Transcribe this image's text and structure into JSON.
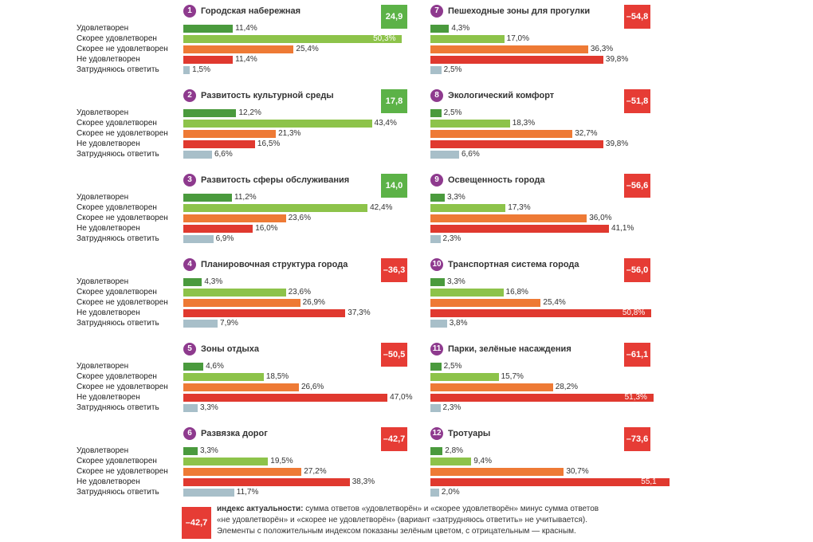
{
  "colors": {
    "satisfied": "#4a9a3d",
    "rather_satisfied": "#8dc34a",
    "rather_not_satisfied": "#ee7a35",
    "not_satisfied": "#e0392f",
    "hard_to_say": "#a8bfc9",
    "index_positive": "#5cb247",
    "index_negative": "#e63c35",
    "number_circle": "#8e3a8e"
  },
  "legend": {
    "index_value": "–42,7",
    "bold_part": "индекс актуальности:",
    "text_line1": " сумма ответов «удовлетворён» и «скорее удовлетворён» минус сумма ответов",
    "text_line2": "«не удовлетворён» и «скорее не удовлетворён» (вариант «затрудняюсь ответить» не учитывается).",
    "text_line3": "Элементы с положительным индексом показаны зелёным цветом, с отрицательным — красным."
  },
  "chart_data": [
    {
      "type": "bar",
      "number": "1",
      "title": "Городская набережная",
      "index": "24,9",
      "categories": [
        "Удовлетворен",
        "Скорее удовлетворен",
        "Скорее не удовлетворен",
        "Не удовлетворен",
        "Затрудняюсь ответить"
      ],
      "values": [
        11.4,
        50.3,
        25.4,
        11.4,
        1.5
      ],
      "labels": [
        "11,4%",
        "50,3%",
        "25,4%",
        "11,4%",
        "1,5%"
      ]
    },
    {
      "type": "bar",
      "number": "2",
      "title": "Развитость культурной среды",
      "index": "17,8",
      "categories": [
        "Удовлетворен",
        "Скорее удовлетворен",
        "Скорее не удовлетворен",
        "Не удовлетворен",
        "Затрудняюсь ответить"
      ],
      "values": [
        12.2,
        43.4,
        21.3,
        16.5,
        6.6
      ],
      "labels": [
        "12,2%",
        "43,4%",
        "21,3%",
        "16,5%",
        "6,6%"
      ]
    },
    {
      "type": "bar",
      "number": "3",
      "title": "Развитость сферы обслуживания",
      "index": "14,0",
      "categories": [
        "Удовлетворен",
        "Скорее удовлетворен",
        "Скорее не удовлетворен",
        "Не удовлетворен",
        "Затрудняюсь ответить"
      ],
      "values": [
        11.2,
        42.4,
        23.6,
        16.0,
        6.9
      ],
      "labels": [
        "11,2%",
        "42,4%",
        "23,6%",
        "16,0%",
        "6,9%"
      ]
    },
    {
      "type": "bar",
      "number": "4",
      "title": "Планировочная структура города",
      "index": "–36,3",
      "categories": [
        "Удовлетворен",
        "Скорее удовлетворен",
        "Скорее не удовлетворен",
        "Не удовлетворен",
        "Затрудняюсь ответить"
      ],
      "values": [
        4.3,
        23.6,
        26.9,
        37.3,
        7.9
      ],
      "labels": [
        "4,3%",
        "23,6%",
        "26,9%",
        "37,3%",
        "7,9%"
      ]
    },
    {
      "type": "bar",
      "number": "5",
      "title": "Зоны отдыха",
      "index": "–50,5",
      "categories": [
        "Удовлетворен",
        "Скорее удовлетворен",
        "Скорее не удовлетворен",
        "Не удовлетворен",
        "Затрудняюсь ответить"
      ],
      "values": [
        4.6,
        18.5,
        26.6,
        47.0,
        3.3
      ],
      "labels": [
        "4,6%",
        "18,5%",
        "26,6%",
        "47,0%",
        "3,3%"
      ]
    },
    {
      "type": "bar",
      "number": "6",
      "title": "Развязка дорог",
      "index": "–42,7",
      "categories": [
        "Удовлетворен",
        "Скорее удовлетворен",
        "Скорее не удовлетворен",
        "Не удовлетворен",
        "Затрудняюсь ответить"
      ],
      "values": [
        3.3,
        19.5,
        27.2,
        38.3,
        11.7
      ],
      "labels": [
        "3,3%",
        "19,5%",
        "27,2%",
        "38,3%",
        "11,7%"
      ]
    },
    {
      "type": "bar",
      "number": "7",
      "title": "Пешеходные зоны для прогулки",
      "index": "–54,8",
      "categories": [
        "",
        "",
        "",
        "",
        ""
      ],
      "values": [
        4.3,
        17.0,
        36.3,
        39.8,
        2.5
      ],
      "labels": [
        "4,3%",
        "17,0%",
        "36,3%",
        "39,8%",
        "2,5%"
      ]
    },
    {
      "type": "bar",
      "number": "8",
      "title": "Экологический комфорт",
      "index": "–51,8",
      "categories": [
        "",
        "",
        "",
        "",
        ""
      ],
      "values": [
        2.5,
        18.3,
        32.7,
        39.8,
        6.6
      ],
      "labels": [
        "2,5%",
        "18,3%",
        "32,7%",
        "39,8%",
        "6,6%"
      ]
    },
    {
      "type": "bar",
      "number": "9",
      "title": "Освещенность города",
      "index": "–56,6",
      "categories": [
        "",
        "",
        "",
        "",
        ""
      ],
      "values": [
        3.3,
        17.3,
        36.0,
        41.1,
        2.3
      ],
      "labels": [
        "3,3%",
        "17,3%",
        "36,0%",
        "41,1%",
        "2,3%"
      ]
    },
    {
      "type": "bar",
      "number": "10",
      "title": "Транспортная система города",
      "index": "–56,0",
      "categories": [
        "",
        "",
        "",
        "",
        ""
      ],
      "values": [
        3.3,
        16.8,
        25.4,
        50.8,
        3.8
      ],
      "labels": [
        "3,3%",
        "16,8%",
        "25,4%",
        "50,8%",
        "3,8%"
      ]
    },
    {
      "type": "bar",
      "number": "11",
      "title": "Парки, зелёные насаждения",
      "index": "–61,1",
      "categories": [
        "",
        "",
        "",
        "",
        ""
      ],
      "values": [
        2.5,
        15.7,
        28.2,
        51.3,
        2.3
      ],
      "labels": [
        "2,5%",
        "15,7%",
        "28,2%",
        "51,3%",
        "2,3%"
      ]
    },
    {
      "type": "bar",
      "number": "12",
      "title": "Тротуары",
      "index": "–73,6",
      "categories": [
        "",
        "",
        "",
        "",
        ""
      ],
      "values": [
        2.8,
        9.4,
        30.7,
        55.1,
        2.0
      ],
      "labels": [
        "2,8%",
        "9,4%",
        "30,7%",
        "55,1",
        "2,0%"
      ]
    }
  ]
}
